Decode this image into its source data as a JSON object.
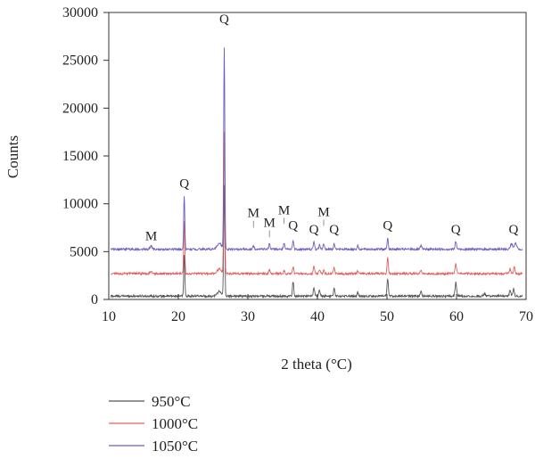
{
  "chart_data": {
    "type": "line",
    "xlabel": "2 theta (°C)",
    "ylabel": "Counts",
    "xlim": [
      10,
      70
    ],
    "ylim": [
      0,
      30000
    ],
    "x_ticks": [
      10,
      20,
      30,
      40,
      50,
      60,
      70
    ],
    "y_ticks": [
      0,
      5000,
      10000,
      15000,
      20000,
      25000,
      30000
    ],
    "grid": false,
    "legend_position": "bottom-left, below plot",
    "series": [
      {
        "name": "950°C",
        "color": "#555555",
        "baseline": 350,
        "noise": 110,
        "peaks": [
          {
            "x": 20.85,
            "h": 4400,
            "w": 0.08
          },
          {
            "x": 26.6,
            "h": 11500,
            "w": 0.08
          },
          {
            "x": 25.9,
            "h": 500,
            "w": 0.3
          },
          {
            "x": 36.5,
            "h": 1500,
            "w": 0.09
          },
          {
            "x": 39.5,
            "h": 900,
            "w": 0.09
          },
          {
            "x": 40.3,
            "h": 650,
            "w": 0.09
          },
          {
            "x": 42.4,
            "h": 850,
            "w": 0.09
          },
          {
            "x": 45.8,
            "h": 400,
            "w": 0.09
          },
          {
            "x": 50.1,
            "h": 1850,
            "w": 0.09
          },
          {
            "x": 54.9,
            "h": 500,
            "w": 0.1
          },
          {
            "x": 59.9,
            "h": 1450,
            "w": 0.1
          },
          {
            "x": 64.0,
            "h": 300,
            "w": 0.1
          },
          {
            "x": 67.7,
            "h": 700,
            "w": 0.1
          },
          {
            "x": 68.2,
            "h": 850,
            "w": 0.1
          }
        ]
      },
      {
        "name": "1000°C",
        "color": "#e06060",
        "baseline": 2700,
        "noise": 110,
        "peaks": [
          {
            "x": 16.1,
            "h": 250,
            "w": 0.15
          },
          {
            "x": 20.85,
            "h": 5600,
            "w": 0.08
          },
          {
            "x": 26.6,
            "h": 14800,
            "w": 0.08
          },
          {
            "x": 25.9,
            "h": 500,
            "w": 0.3
          },
          {
            "x": 33.1,
            "h": 350,
            "w": 0.1
          },
          {
            "x": 35.2,
            "h": 300,
            "w": 0.1
          },
          {
            "x": 36.5,
            "h": 750,
            "w": 0.09
          },
          {
            "x": 39.5,
            "h": 800,
            "w": 0.09
          },
          {
            "x": 40.3,
            "h": 450,
            "w": 0.09
          },
          {
            "x": 40.9,
            "h": 350,
            "w": 0.09
          },
          {
            "x": 42.4,
            "h": 700,
            "w": 0.09
          },
          {
            "x": 45.8,
            "h": 350,
            "w": 0.09
          },
          {
            "x": 50.1,
            "h": 1650,
            "w": 0.09
          },
          {
            "x": 54.9,
            "h": 350,
            "w": 0.1
          },
          {
            "x": 59.9,
            "h": 1000,
            "w": 0.1
          },
          {
            "x": 67.7,
            "h": 500,
            "w": 0.1
          },
          {
            "x": 68.3,
            "h": 650,
            "w": 0.1
          }
        ]
      },
      {
        "name": "1050°C",
        "color": "#6b5fc0",
        "baseline": 5250,
        "noise": 110,
        "peaks": [
          {
            "x": 16.1,
            "h": 350,
            "w": 0.15
          },
          {
            "x": 20.85,
            "h": 5600,
            "w": 0.08
          },
          {
            "x": 26.6,
            "h": 21000,
            "w": 0.08
          },
          {
            "x": 25.9,
            "h": 650,
            "w": 0.3
          },
          {
            "x": 30.8,
            "h": 350,
            "w": 0.1
          },
          {
            "x": 33.1,
            "h": 600,
            "w": 0.1
          },
          {
            "x": 35.2,
            "h": 550,
            "w": 0.1
          },
          {
            "x": 36.5,
            "h": 900,
            "w": 0.09
          },
          {
            "x": 39.5,
            "h": 750,
            "w": 0.09
          },
          {
            "x": 40.3,
            "h": 500,
            "w": 0.09
          },
          {
            "x": 40.9,
            "h": 600,
            "w": 0.09
          },
          {
            "x": 42.4,
            "h": 650,
            "w": 0.09
          },
          {
            "x": 45.8,
            "h": 400,
            "w": 0.09
          },
          {
            "x": 50.1,
            "h": 1150,
            "w": 0.09
          },
          {
            "x": 54.9,
            "h": 350,
            "w": 0.1
          },
          {
            "x": 59.9,
            "h": 800,
            "w": 0.1
          },
          {
            "x": 67.9,
            "h": 600,
            "w": 0.15
          },
          {
            "x": 68.5,
            "h": 650,
            "w": 0.15
          }
        ]
      }
    ],
    "annotations": [
      {
        "text": "M",
        "x": 16.1,
        "y": 6200,
        "line_y": null
      },
      {
        "text": "Q",
        "x": 20.85,
        "y": 11700,
        "line_y": null
      },
      {
        "text": "Q",
        "x": 26.6,
        "y": 28900,
        "line_y": null
      },
      {
        "text": "M",
        "x": 30.8,
        "y": 8600,
        "line_y": 7500
      },
      {
        "text": "M",
        "x": 33.1,
        "y": 7600,
        "line_y": 6500
      },
      {
        "text": "M",
        "x": 35.2,
        "y": 8900,
        "line_y": 7900
      },
      {
        "text": "Q",
        "x": 36.5,
        "y": 7300,
        "line_y": null
      },
      {
        "text": "Q",
        "x": 39.5,
        "y": 6900,
        "line_y": null
      },
      {
        "text": "M",
        "x": 40.9,
        "y": 8700,
        "line_y": 7700
      },
      {
        "text": "Q",
        "x": 42.4,
        "y": 6900,
        "line_y": null
      },
      {
        "text": "Q",
        "x": 50.1,
        "y": 7300,
        "line_y": null
      },
      {
        "text": "Q",
        "x": 59.9,
        "y": 6900,
        "line_y": null
      },
      {
        "text": "Q",
        "x": 68.2,
        "y": 6900,
        "line_y": null
      }
    ]
  }
}
